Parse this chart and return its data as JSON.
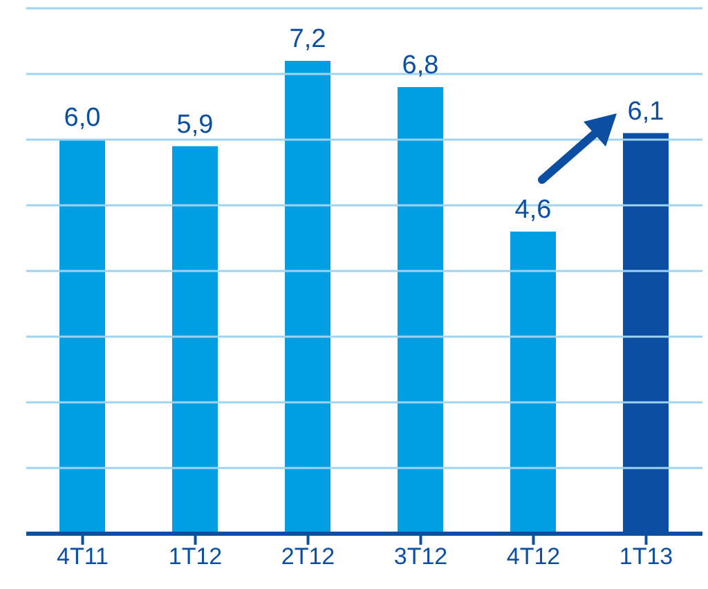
{
  "chart_data": {
    "type": "bar",
    "categories": [
      "4T11",
      "1T12",
      "2T12",
      "3T12",
      "4T12",
      "1T13"
    ],
    "values": [
      6.0,
      5.9,
      7.2,
      6.8,
      4.6,
      6.1
    ],
    "value_labels": [
      "6,0",
      "5,9",
      "7,2",
      "6,8",
      "4,6",
      "6,1"
    ],
    "colors": [
      "#009fe3",
      "#009fe3",
      "#009fe3",
      "#009fe3",
      "#009fe3",
      "#0b4ea2"
    ],
    "ylim": [
      0,
      8
    ],
    "yticks": [
      {
        "value": 0,
        "label": null
      },
      {
        "value": 1,
        "label": null
      },
      {
        "value": 2,
        "label": null
      },
      {
        "value": 3,
        "label": null
      },
      {
        "value": 4,
        "label": null
      },
      {
        "value": 5,
        "label": null
      },
      {
        "value": 6,
        "label": null
      },
      {
        "value": 7,
        "label": null
      },
      {
        "value": 8,
        "label": null
      }
    ],
    "grid": "y",
    "tick_labels": "x",
    "legend": false
  }
}
